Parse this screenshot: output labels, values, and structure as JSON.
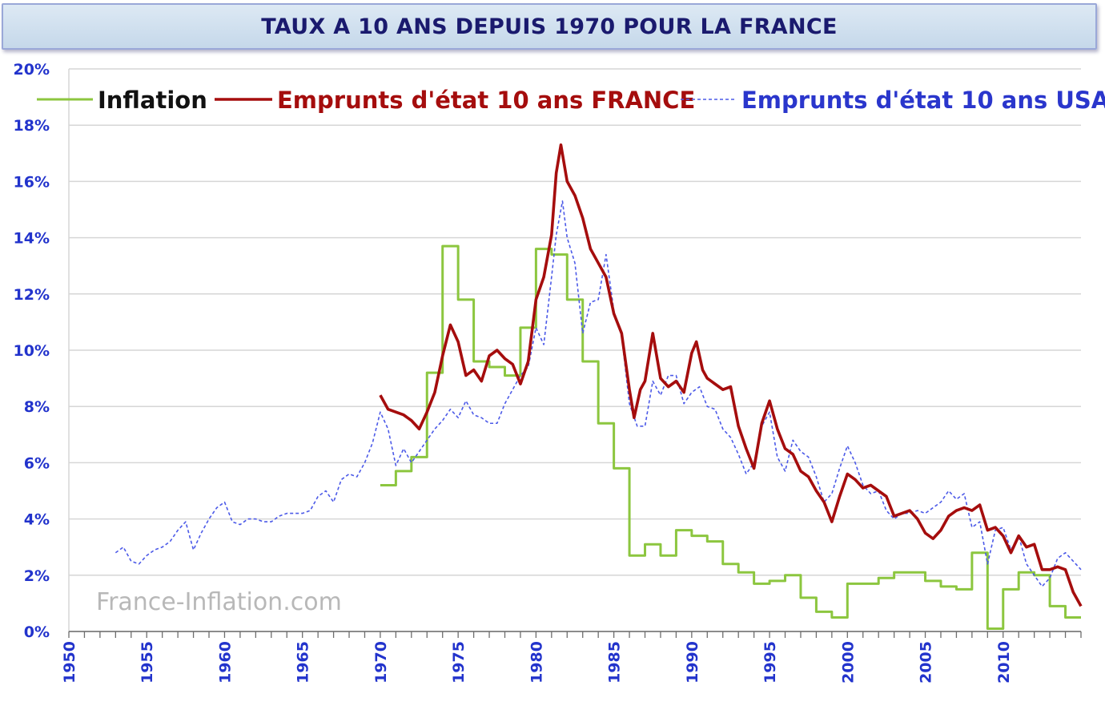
{
  "title": "TAUX A 10 ANS DEPUIS 1970 POUR LA FRANCE",
  "watermark": "France-Inflation.com",
  "colors": {
    "inflation": "#8cc63f",
    "france": "#a50d0d",
    "usa": "#4c5ae8",
    "axis_text": "#2233cc",
    "grid": "#d6d6d6",
    "title_text": "#1a1a6e"
  },
  "chart_data": {
    "type": "line",
    "title": "TAUX A 10 ANS DEPUIS 1970 POUR LA FRANCE",
    "xlim": [
      1950,
      2015
    ],
    "ylim": [
      0,
      20
    ],
    "x_ticks": [
      "1950",
      "1955",
      "1960",
      "1965",
      "1970",
      "1975",
      "1980",
      "1985",
      "1990",
      "1995",
      "2000",
      "2005",
      "2010"
    ],
    "y_ticks": [
      "0%",
      "2%",
      "4%",
      "6%",
      "8%",
      "10%",
      "12%",
      "14%",
      "16%",
      "18%",
      "20%"
    ],
    "grid": "horizontal",
    "legend_position": "top",
    "series": [
      {
        "name": "Inflation",
        "style": "step",
        "color": "#8cc63f",
        "points": [
          [
            1970,
            5.2
          ],
          [
            1971,
            5.7
          ],
          [
            1972,
            6.2
          ],
          [
            1973,
            9.2
          ],
          [
            1974,
            13.7
          ],
          [
            1975,
            11.8
          ],
          [
            1976,
            9.6
          ],
          [
            1977,
            9.4
          ],
          [
            1978,
            9.1
          ],
          [
            1979,
            10.8
          ],
          [
            1980,
            13.6
          ],
          [
            1981,
            13.4
          ],
          [
            1982,
            11.8
          ],
          [
            1983,
            9.6
          ],
          [
            1984,
            7.4
          ],
          [
            1985,
            5.8
          ],
          [
            1986,
            2.7
          ],
          [
            1987,
            3.1
          ],
          [
            1988,
            2.7
          ],
          [
            1989,
            3.6
          ],
          [
            1990,
            3.4
          ],
          [
            1991,
            3.2
          ],
          [
            1992,
            2.4
          ],
          [
            1993,
            2.1
          ],
          [
            1994,
            1.7
          ],
          [
            1995,
            1.8
          ],
          [
            1996,
            2.0
          ],
          [
            1997,
            1.2
          ],
          [
            1998,
            0.7
          ],
          [
            1999,
            0.5
          ],
          [
            2000,
            1.7
          ],
          [
            2001,
            1.7
          ],
          [
            2002,
            1.9
          ],
          [
            2003,
            2.1
          ],
          [
            2004,
            2.1
          ],
          [
            2005,
            1.8
          ],
          [
            2006,
            1.6
          ],
          [
            2007,
            1.5
          ],
          [
            2008,
            2.8
          ],
          [
            2009,
            0.1
          ],
          [
            2010,
            1.5
          ],
          [
            2011,
            2.1
          ],
          [
            2012,
            2.0
          ],
          [
            2013,
            0.9
          ],
          [
            2014,
            0.5
          ],
          [
            2015,
            0.5
          ]
        ]
      },
      {
        "name": "Emprunts d'état 10 ans FRANCE",
        "style": "solid",
        "color": "#a50d0d",
        "points": [
          [
            1970.0,
            8.4
          ],
          [
            1970.5,
            7.9
          ],
          [
            1971.0,
            7.8
          ],
          [
            1971.5,
            7.7
          ],
          [
            1972.0,
            7.5
          ],
          [
            1972.5,
            7.2
          ],
          [
            1973.0,
            7.8
          ],
          [
            1973.5,
            8.5
          ],
          [
            1974.0,
            9.8
          ],
          [
            1974.5,
            10.9
          ],
          [
            1975.0,
            10.3
          ],
          [
            1975.5,
            9.1
          ],
          [
            1976.0,
            9.3
          ],
          [
            1976.5,
            8.9
          ],
          [
            1977.0,
            9.8
          ],
          [
            1977.5,
            10.0
          ],
          [
            1978.0,
            9.7
          ],
          [
            1978.5,
            9.5
          ],
          [
            1979.0,
            8.8
          ],
          [
            1979.5,
            9.6
          ],
          [
            1980.0,
            11.8
          ],
          [
            1980.5,
            12.6
          ],
          [
            1981.0,
            14.1
          ],
          [
            1981.3,
            16.3
          ],
          [
            1981.6,
            17.3
          ],
          [
            1982.0,
            16.0
          ],
          [
            1982.5,
            15.5
          ],
          [
            1983.0,
            14.7
          ],
          [
            1983.5,
            13.6
          ],
          [
            1984.0,
            13.1
          ],
          [
            1984.5,
            12.6
          ],
          [
            1985.0,
            11.3
          ],
          [
            1985.5,
            10.6
          ],
          [
            1986.0,
            8.6
          ],
          [
            1986.3,
            7.6
          ],
          [
            1986.7,
            8.6
          ],
          [
            1987.0,
            8.9
          ],
          [
            1987.5,
            10.6
          ],
          [
            1988.0,
            9.0
          ],
          [
            1988.5,
            8.7
          ],
          [
            1989.0,
            8.9
          ],
          [
            1989.5,
            8.5
          ],
          [
            1990.0,
            9.9
          ],
          [
            1990.3,
            10.3
          ],
          [
            1990.7,
            9.3
          ],
          [
            1991.0,
            9.0
          ],
          [
            1991.5,
            8.8
          ],
          [
            1992.0,
            8.6
          ],
          [
            1992.5,
            8.7
          ],
          [
            1993.0,
            7.3
          ],
          [
            1993.5,
            6.5
          ],
          [
            1994.0,
            5.8
          ],
          [
            1994.5,
            7.4
          ],
          [
            1995.0,
            8.2
          ],
          [
            1995.5,
            7.2
          ],
          [
            1996.0,
            6.5
          ],
          [
            1996.5,
            6.3
          ],
          [
            1997.0,
            5.7
          ],
          [
            1997.5,
            5.5
          ],
          [
            1998.0,
            5.0
          ],
          [
            1998.5,
            4.6
          ],
          [
            1999.0,
            3.9
          ],
          [
            1999.5,
            4.8
          ],
          [
            2000.0,
            5.6
          ],
          [
            2000.5,
            5.4
          ],
          [
            2001.0,
            5.1
          ],
          [
            2001.5,
            5.2
          ],
          [
            2002.0,
            5.0
          ],
          [
            2002.5,
            4.8
          ],
          [
            2003.0,
            4.1
          ],
          [
            2003.5,
            4.2
          ],
          [
            2004.0,
            4.3
          ],
          [
            2004.5,
            4.0
          ],
          [
            2005.0,
            3.5
          ],
          [
            2005.5,
            3.3
          ],
          [
            2006.0,
            3.6
          ],
          [
            2006.5,
            4.1
          ],
          [
            2007.0,
            4.3
          ],
          [
            2007.5,
            4.4
          ],
          [
            2008.0,
            4.3
          ],
          [
            2008.5,
            4.5
          ],
          [
            2009.0,
            3.6
          ],
          [
            2009.5,
            3.7
          ],
          [
            2010.0,
            3.4
          ],
          [
            2010.5,
            2.8
          ],
          [
            2011.0,
            3.4
          ],
          [
            2011.5,
            3.0
          ],
          [
            2012.0,
            3.1
          ],
          [
            2012.5,
            2.2
          ],
          [
            2013.0,
            2.2
          ],
          [
            2013.5,
            2.3
          ],
          [
            2014.0,
            2.2
          ],
          [
            2014.5,
            1.4
          ],
          [
            2015.0,
            0.9
          ]
        ]
      },
      {
        "name": "Emprunts d'état 10 ans USA",
        "style": "dashed",
        "color": "#4c5ae8",
        "points": [
          [
            1953.0,
            2.8
          ],
          [
            1953.5,
            3.0
          ],
          [
            1954.0,
            2.5
          ],
          [
            1954.5,
            2.4
          ],
          [
            1955.0,
            2.7
          ],
          [
            1955.5,
            2.9
          ],
          [
            1956.0,
            3.0
          ],
          [
            1956.5,
            3.2
          ],
          [
            1957.0,
            3.6
          ],
          [
            1957.5,
            3.9
          ],
          [
            1958.0,
            2.9
          ],
          [
            1958.5,
            3.5
          ],
          [
            1959.0,
            4.0
          ],
          [
            1959.5,
            4.4
          ],
          [
            1960.0,
            4.6
          ],
          [
            1960.5,
            3.9
          ],
          [
            1961.0,
            3.8
          ],
          [
            1961.5,
            4.0
          ],
          [
            1962.0,
            4.0
          ],
          [
            1962.5,
            3.9
          ],
          [
            1963.0,
            3.9
          ],
          [
            1963.5,
            4.1
          ],
          [
            1964.0,
            4.2
          ],
          [
            1964.5,
            4.2
          ],
          [
            1965.0,
            4.2
          ],
          [
            1965.5,
            4.3
          ],
          [
            1966.0,
            4.8
          ],
          [
            1966.5,
            5.0
          ],
          [
            1967.0,
            4.6
          ],
          [
            1967.5,
            5.4
          ],
          [
            1968.0,
            5.6
          ],
          [
            1968.5,
            5.5
          ],
          [
            1969.0,
            6.0
          ],
          [
            1969.5,
            6.7
          ],
          [
            1970.0,
            7.8
          ],
          [
            1970.5,
            7.2
          ],
          [
            1971.0,
            5.9
          ],
          [
            1971.5,
            6.5
          ],
          [
            1972.0,
            6.0
          ],
          [
            1972.5,
            6.4
          ],
          [
            1973.0,
            6.8
          ],
          [
            1973.5,
            7.2
          ],
          [
            1974.0,
            7.5
          ],
          [
            1974.5,
            7.9
          ],
          [
            1975.0,
            7.6
          ],
          [
            1975.5,
            8.2
          ],
          [
            1976.0,
            7.7
          ],
          [
            1976.5,
            7.6
          ],
          [
            1977.0,
            7.4
          ],
          [
            1977.5,
            7.4
          ],
          [
            1978.0,
            8.1
          ],
          [
            1978.5,
            8.6
          ],
          [
            1979.0,
            9.1
          ],
          [
            1979.5,
            9.4
          ],
          [
            1980.0,
            10.8
          ],
          [
            1980.5,
            10.2
          ],
          [
            1981.0,
            12.6
          ],
          [
            1981.3,
            14.1
          ],
          [
            1981.7,
            15.3
          ],
          [
            1982.0,
            14.0
          ],
          [
            1982.5,
            13.1
          ],
          [
            1983.0,
            10.6
          ],
          [
            1983.5,
            11.7
          ],
          [
            1984.0,
            11.8
          ],
          [
            1984.5,
            13.4
          ],
          [
            1985.0,
            11.4
          ],
          [
            1985.5,
            10.5
          ],
          [
            1986.0,
            8.1
          ],
          [
            1986.5,
            7.3
          ],
          [
            1987.0,
            7.3
          ],
          [
            1987.5,
            8.9
          ],
          [
            1988.0,
            8.4
          ],
          [
            1988.5,
            9.1
          ],
          [
            1989.0,
            9.1
          ],
          [
            1989.5,
            8.1
          ],
          [
            1990.0,
            8.5
          ],
          [
            1990.5,
            8.7
          ],
          [
            1991.0,
            8.0
          ],
          [
            1991.5,
            7.9
          ],
          [
            1992.0,
            7.2
          ],
          [
            1992.5,
            6.9
          ],
          [
            1993.0,
            6.3
          ],
          [
            1993.5,
            5.6
          ],
          [
            1994.0,
            6.0
          ],
          [
            1994.5,
            7.3
          ],
          [
            1995.0,
            7.8
          ],
          [
            1995.5,
            6.2
          ],
          [
            1996.0,
            5.7
          ],
          [
            1996.5,
            6.8
          ],
          [
            1997.0,
            6.4
          ],
          [
            1997.5,
            6.2
          ],
          [
            1998.0,
            5.5
          ],
          [
            1998.5,
            4.6
          ],
          [
            1999.0,
            4.9
          ],
          [
            1999.5,
            5.8
          ],
          [
            2000.0,
            6.6
          ],
          [
            2000.5,
            6.0
          ],
          [
            2001.0,
            5.2
          ],
          [
            2001.5,
            4.9
          ],
          [
            2002.0,
            5.0
          ],
          [
            2002.5,
            4.3
          ],
          [
            2003.0,
            4.0
          ],
          [
            2003.5,
            4.2
          ],
          [
            2004.0,
            4.2
          ],
          [
            2004.5,
            4.3
          ],
          [
            2005.0,
            4.2
          ],
          [
            2005.5,
            4.4
          ],
          [
            2006.0,
            4.6
          ],
          [
            2006.5,
            5.0
          ],
          [
            2007.0,
            4.7
          ],
          [
            2007.5,
            4.9
          ],
          [
            2008.0,
            3.7
          ],
          [
            2008.5,
            3.9
          ],
          [
            2009.0,
            2.4
          ],
          [
            2009.5,
            3.6
          ],
          [
            2010.0,
            3.7
          ],
          [
            2010.5,
            2.9
          ],
          [
            2011.0,
            3.4
          ],
          [
            2011.5,
            2.4
          ],
          [
            2012.0,
            2.0
          ],
          [
            2012.5,
            1.6
          ],
          [
            2013.0,
            1.9
          ],
          [
            2013.5,
            2.6
          ],
          [
            2014.0,
            2.8
          ],
          [
            2014.5,
            2.5
          ],
          [
            2015.0,
            2.2
          ]
        ]
      }
    ]
  }
}
